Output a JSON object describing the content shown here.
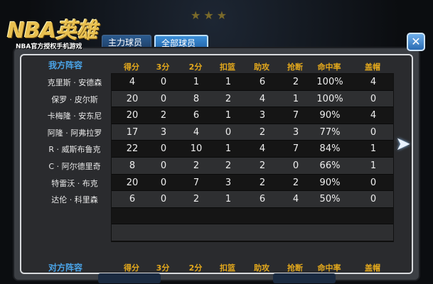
{
  "logo": {
    "title": "NBA英雄",
    "subtitle": "NBA官方授权手机游戏"
  },
  "tabs": [
    {
      "label": "主力球员",
      "active": false
    },
    {
      "label": "全部球员",
      "active": true
    }
  ],
  "close_label": "✕",
  "columns": [
    "得分",
    "3分",
    "2分",
    "扣篮",
    "助攻",
    "抢断",
    "命中率",
    "盖帽"
  ],
  "my_team": {
    "label": "我方阵容",
    "players": [
      {
        "name": "克里斯 · 安德森",
        "stats": [
          "4",
          "0",
          "1",
          "1",
          "6",
          "2",
          "100%",
          "4"
        ]
      },
      {
        "name": "保罗 · 皮尔斯",
        "stats": [
          "20",
          "0",
          "8",
          "2",
          "4",
          "1",
          "100%",
          "0"
        ]
      },
      {
        "name": "卡梅隆 · 安东尼",
        "stats": [
          "20",
          "2",
          "6",
          "1",
          "3",
          "7",
          "90%",
          "4"
        ]
      },
      {
        "name": "阿隆 · 阿弗拉罗",
        "stats": [
          "17",
          "3",
          "4",
          "0",
          "2",
          "3",
          "77%",
          "0"
        ]
      },
      {
        "name": "R · 威斯布鲁克",
        "stats": [
          "22",
          "0",
          "10",
          "1",
          "4",
          "7",
          "84%",
          "1"
        ]
      },
      {
        "name": "C · 阿尔德里奇",
        "stats": [
          "8",
          "0",
          "2",
          "2",
          "2",
          "0",
          "66%",
          "1"
        ]
      },
      {
        "name": "特雷沃 · 布克",
        "stats": [
          "20",
          "0",
          "7",
          "3",
          "2",
          "2",
          "90%",
          "0"
        ]
      },
      {
        "name": "达伦 · 科里森",
        "stats": [
          "6",
          "0",
          "2",
          "1",
          "6",
          "4",
          "50%",
          "0"
        ]
      }
    ]
  },
  "opponent": {
    "label": "对方阵容"
  },
  "colors": {
    "header": "#e3a81c",
    "team_label": "#4aa4e8",
    "tab_active": "#3b8fd8"
  }
}
